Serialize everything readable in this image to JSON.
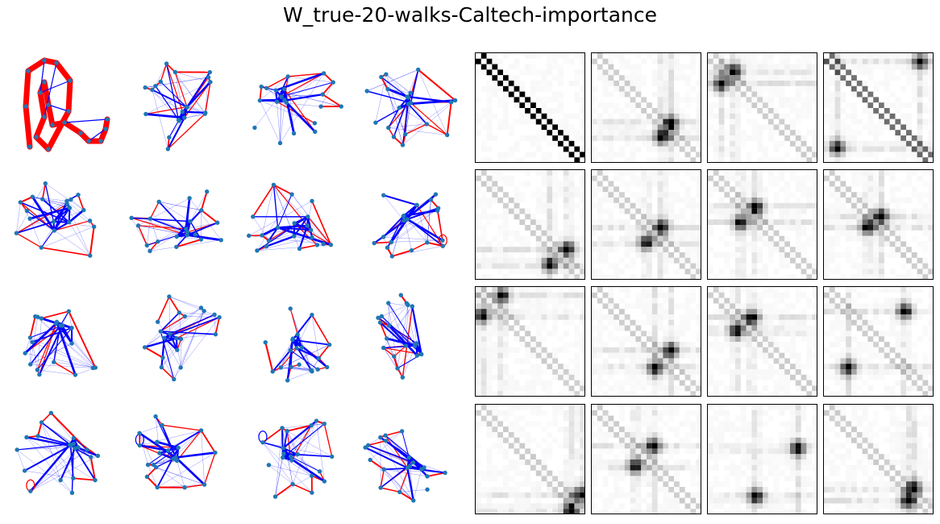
{
  "title": "W_true-20-walks-Caltech-importance",
  "colors": {
    "walk_edge": "#ff0000",
    "graph_edge": "#0000ff",
    "node": "#1f77b4",
    "heatmap_high": "#000000",
    "heatmap_low": "#ffffff",
    "frame": "#000000"
  },
  "layout": {
    "network_grid": "4x4",
    "heatmap_grid": "4x4"
  },
  "networks": [
    {
      "panel": "network-1",
      "description": "ring-shaped walk with thick red edges"
    },
    {
      "panel": "network-2"
    },
    {
      "panel": "network-3"
    },
    {
      "panel": "network-4"
    },
    {
      "panel": "network-5"
    },
    {
      "panel": "network-6"
    },
    {
      "panel": "network-7"
    },
    {
      "panel": "network-8",
      "self_loop": true
    },
    {
      "panel": "network-9"
    },
    {
      "panel": "network-10"
    },
    {
      "panel": "network-11"
    },
    {
      "panel": "network-12"
    },
    {
      "panel": "network-13",
      "self_loop": true
    },
    {
      "panel": "network-14",
      "self_loop": true
    },
    {
      "panel": "network-15",
      "self_loop": true
    },
    {
      "panel": "network-16"
    }
  ],
  "heatmaps": [
    {
      "panel": "matrix-1",
      "pattern": "diagonal",
      "hotspots": []
    },
    {
      "panel": "matrix-2",
      "pattern": "faint-diagonal",
      "hotspots": [
        [
          0.72,
          0.64
        ],
        [
          0.64,
          0.76
        ]
      ]
    },
    {
      "panel": "matrix-3",
      "pattern": "faint-diagonal",
      "hotspots": [
        [
          0.24,
          0.16
        ],
        [
          0.12,
          0.28
        ]
      ]
    },
    {
      "panel": "matrix-4",
      "pattern": "strong-diagonal",
      "hotspots": [
        [
          0.88,
          0.08
        ],
        [
          0.12,
          0.86
        ]
      ]
    },
    {
      "panel": "matrix-5",
      "pattern": "faint-diagonal",
      "hotspots": [
        [
          0.84,
          0.72
        ],
        [
          0.68,
          0.86
        ]
      ]
    },
    {
      "panel": "matrix-6",
      "pattern": "faint-diagonal",
      "hotspots": [
        [
          0.64,
          0.52
        ],
        [
          0.5,
          0.66
        ]
      ]
    },
    {
      "panel": "matrix-7",
      "pattern": "faint-diagonal",
      "hotspots": [
        [
          0.44,
          0.34
        ],
        [
          0.3,
          0.48
        ]
      ]
    },
    {
      "panel": "matrix-8",
      "pattern": "faint-diagonal",
      "hotspots": [
        [
          0.52,
          0.42
        ],
        [
          0.4,
          0.52
        ]
      ]
    },
    {
      "panel": "matrix-9",
      "pattern": "faint-diagonal",
      "hotspots": [
        [
          0.24,
          0.08
        ],
        [
          0.06,
          0.26
        ]
      ]
    },
    {
      "panel": "matrix-10",
      "pattern": "faint-diagonal",
      "hotspots": [
        [
          0.72,
          0.58
        ],
        [
          0.58,
          0.74
        ]
      ]
    },
    {
      "panel": "matrix-11",
      "pattern": "faint-diagonal",
      "hotspots": [
        [
          0.4,
          0.28
        ],
        [
          0.26,
          0.4
        ]
      ]
    },
    {
      "panel": "matrix-12",
      "pattern": "faint-diagonal",
      "hotspots": [
        [
          0.74,
          0.22
        ],
        [
          0.22,
          0.74
        ]
      ]
    },
    {
      "panel": "matrix-13",
      "pattern": "faint-diagonal",
      "hotspots": [
        [
          0.96,
          0.82
        ],
        [
          0.86,
          0.96
        ]
      ]
    },
    {
      "panel": "matrix-14",
      "pattern": "faint-diagonal",
      "hotspots": [
        [
          0.56,
          0.38
        ],
        [
          0.4,
          0.56
        ]
      ]
    },
    {
      "panel": "matrix-15",
      "pattern": "none",
      "hotspots": [
        [
          0.82,
          0.4
        ],
        [
          0.44,
          0.84
        ]
      ]
    },
    {
      "panel": "matrix-16",
      "pattern": "faint-diagonal",
      "hotspots": [
        [
          0.82,
          0.76
        ],
        [
          0.76,
          0.88
        ]
      ]
    }
  ]
}
